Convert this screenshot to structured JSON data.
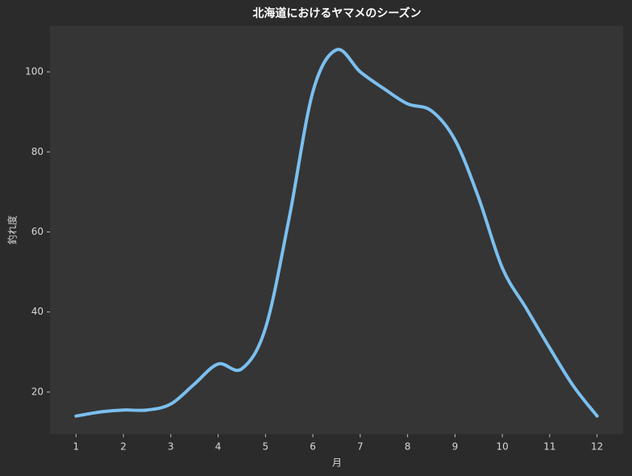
{
  "chart_data": {
    "type": "line",
    "title": "北海道におけるヤマメのシーズン",
    "x_label": "月",
    "y_label": "釣れ度",
    "x": [
      1,
      1.5,
      2,
      2.5,
      3,
      3.5,
      4,
      4.5,
      5,
      5.5,
      6,
      6.5,
      7,
      7.5,
      8,
      8.5,
      9,
      9.5,
      10,
      10.5,
      11,
      11.5,
      12
    ],
    "series": [
      {
        "name": "釣れ度",
        "color": "#7bbfef",
        "values": [
          14,
          15,
          15.5,
          15.5,
          17,
          22,
          27,
          25.8,
          36,
          63.5,
          95,
          105.5,
          100,
          95.8,
          92,
          90.3,
          83,
          68.5,
          51,
          41,
          31,
          21.5,
          14
        ]
      }
    ],
    "xlim": [
      0.45,
      12.55
    ],
    "ylim": [
      9.5,
      111.5
    ],
    "xticks": [
      1,
      2,
      3,
      4,
      5,
      6,
      7,
      8,
      9,
      10,
      11,
      12
    ],
    "yticks": [
      20,
      40,
      60,
      80,
      100
    ],
    "grid": false
  }
}
